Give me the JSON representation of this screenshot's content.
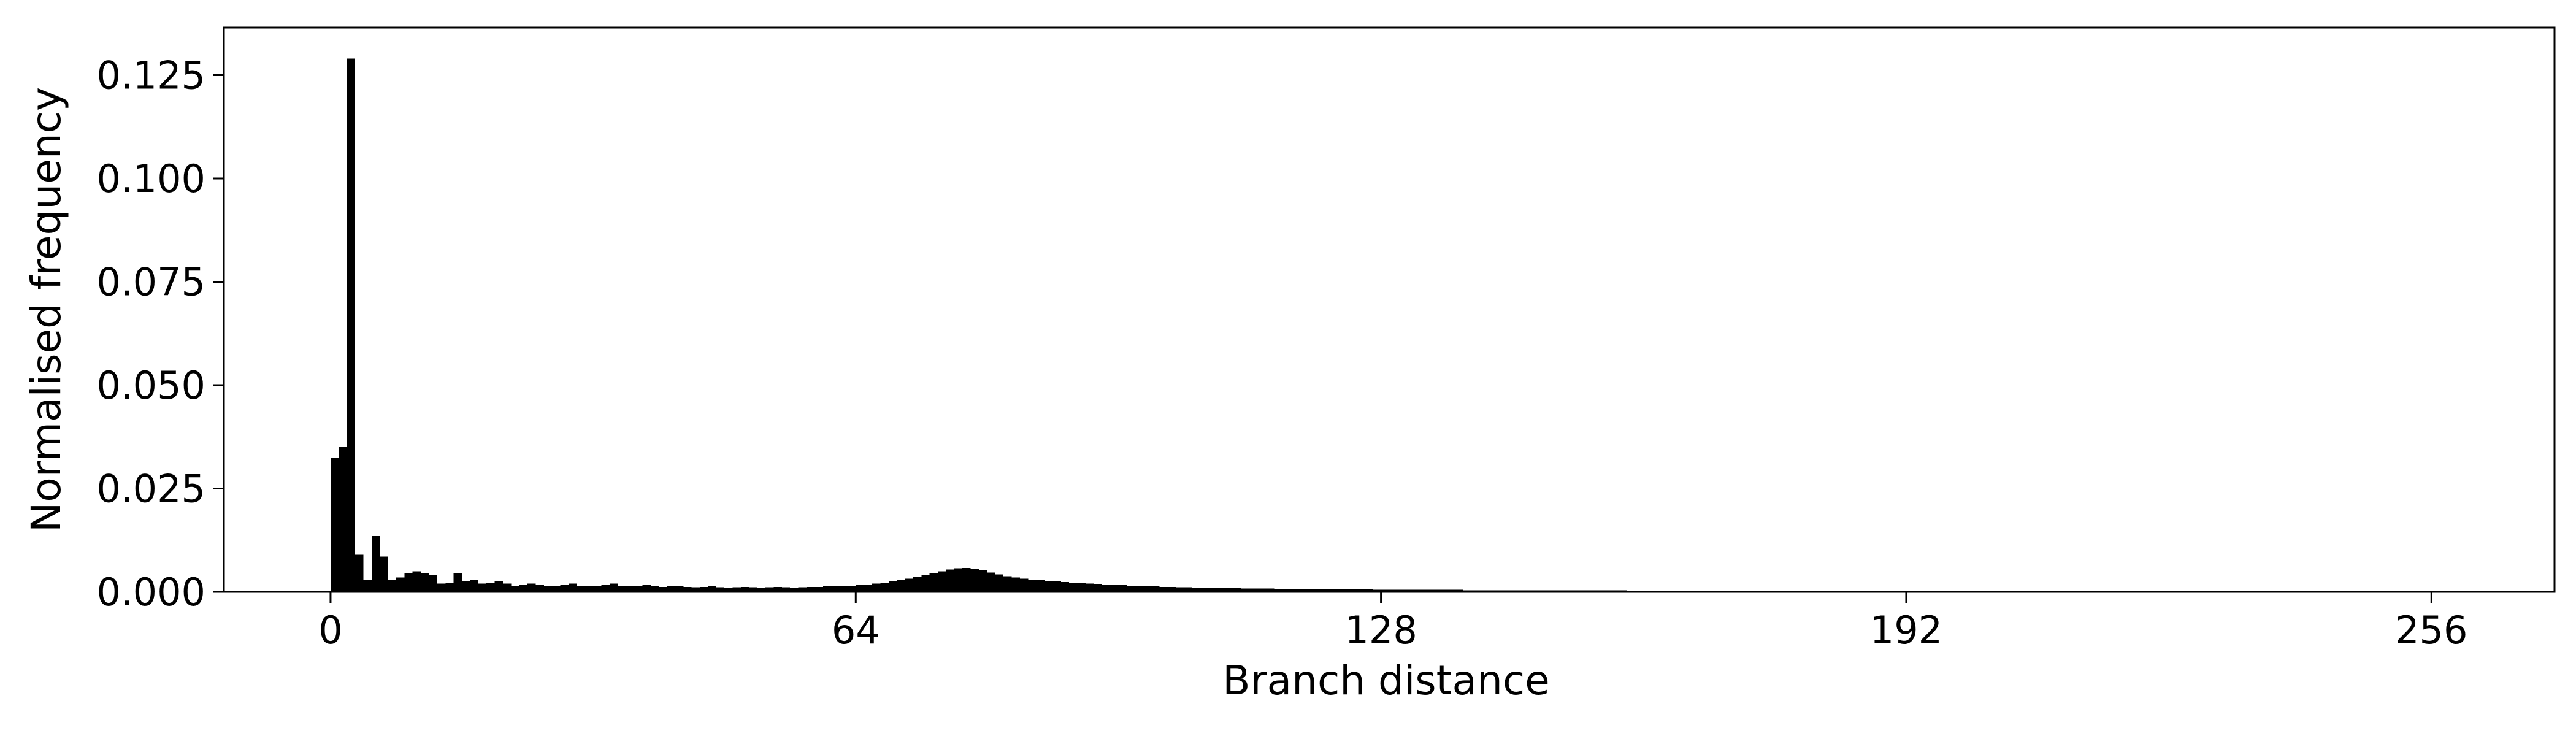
{
  "chart_data": {
    "type": "bar",
    "title": "",
    "xlabel": "Branch distance",
    "ylabel": "Normalised frequency",
    "xlim": [
      -13,
      271
    ],
    "ylim": [
      0,
      0.1365
    ],
    "bin_width": 1,
    "bar_color": "#000000",
    "grid": false,
    "legend": "none",
    "x_ticks": [
      0,
      64,
      128,
      192,
      256
    ],
    "x_tick_labels": [
      "0",
      "64",
      "128",
      "192",
      "256"
    ],
    "y_ticks": [
      0,
      0.025,
      0.05,
      0.075,
      0.1,
      0.125
    ],
    "y_tick_labels": [
      "0.000",
      "0.025",
      "0.050",
      "0.075",
      "0.100",
      "0.125"
    ],
    "bins_start": 0,
    "values": [
      0.0325,
      0.0352,
      0.129,
      0.009,
      0.003,
      0.0135,
      0.0085,
      0.003,
      0.0035,
      0.0045,
      0.005,
      0.0045,
      0.004,
      0.002,
      0.0022,
      0.0045,
      0.0025,
      0.0028,
      0.002,
      0.0022,
      0.0025,
      0.002,
      0.0015,
      0.0018,
      0.002,
      0.0018,
      0.0015,
      0.0015,
      0.0018,
      0.002,
      0.0015,
      0.0013,
      0.0015,
      0.0018,
      0.002,
      0.0015,
      0.0014,
      0.0015,
      0.0016,
      0.0014,
      0.0012,
      0.0013,
      0.0014,
      0.0012,
      0.0011,
      0.0012,
      0.0013,
      0.0011,
      0.001,
      0.0011,
      0.0012,
      0.0011,
      0.001,
      0.0011,
      0.0012,
      0.0011,
      0.001,
      0.0011,
      0.0012,
      0.0012,
      0.0013,
      0.0013,
      0.0014,
      0.0015,
      0.0016,
      0.0018,
      0.002,
      0.0022,
      0.0025,
      0.0028,
      0.0032,
      0.0036,
      0.0041,
      0.0046,
      0.005,
      0.0054,
      0.0057,
      0.0058,
      0.0056,
      0.0052,
      0.0047,
      0.0042,
      0.0038,
      0.0035,
      0.0032,
      0.003,
      0.0028,
      0.0027,
      0.0025,
      0.0024,
      0.0022,
      0.0021,
      0.002,
      0.0019,
      0.0018,
      0.0017,
      0.0016,
      0.0015,
      0.0014,
      0.0013,
      0.0013,
      0.0012,
      0.0012,
      0.0011,
      0.0011,
      0.001,
      0.001,
      0.001,
      0.0009,
      0.0009,
      0.0009,
      0.0008,
      0.0008,
      0.0008,
      0.0008,
      0.0007,
      0.0007,
      0.0007,
      0.0007,
      0.0007,
      0.0006,
      0.0006,
      0.0006,
      0.0006,
      0.0006,
      0.0006,
      0.0006,
      0.0005,
      0.0005,
      0.0005,
      0.0005,
      0.0005,
      0.0005,
      0.0005,
      0.0005,
      0.0005,
      0.0005,
      0.0005,
      0.0004,
      0.0004,
      0.0004,
      0.0004,
      0.0004,
      0.0004,
      0.0004,
      0.0004,
      0.0004,
      0.0004,
      0.0004,
      0.0004,
      0.0004,
      0.0004,
      0.0004,
      0.0004,
      0.0004,
      0.0004,
      0.0004,
      0.0004,
      0.0003,
      0.0003,
      0.0003,
      0.0003,
      0.0003,
      0.0003,
      0.0003,
      0.0003,
      0.0003,
      0.0003,
      0.0003,
      0.0003,
      0.0003,
      0.0003,
      0.0003,
      0.0003,
      0.0003,
      0.0003,
      0.0003,
      0.0003,
      0.0003,
      0.0003,
      0.0003,
      0.0003,
      0.0003,
      0.0003,
      0.0003,
      0.0003,
      0.0003,
      0.0003,
      0.0003,
      0.0003,
      0.0003,
      0.0003,
      0.0003,
      0.0002,
      0.0002,
      0.0002,
      0.0002,
      0.0002,
      0.0002,
      0.0002,
      0.0002,
      0.0002,
      0.0002,
      0.0002,
      0.0002,
      0.0002,
      0.0002,
      0.0002,
      0.0002,
      0.0002,
      0.0002,
      0.0002,
      0.0002,
      0.0002,
      0.0002,
      0.0002,
      0.0002,
      0.0002,
      0.0002,
      0.0002,
      0.0002,
      0.0002,
      0.0002,
      0.0002,
      0.0002,
      0.0002,
      0.0002,
      0.0002,
      0.0002,
      0.0002,
      0.0002,
      0.0002,
      0.0002,
      0.0002,
      0.0002,
      0.0002,
      0.0002,
      0.0002,
      0.0002,
      0.0002,
      0.0002,
      0.0002,
      0.0002,
      0.0002,
      0.0002,
      0.0002,
      0.0002,
      0.0002,
      0.0002,
      0.0002,
      0.0002,
      0.0002,
      0.0002,
      0.0002,
      0.0002,
      0.0002
    ]
  }
}
